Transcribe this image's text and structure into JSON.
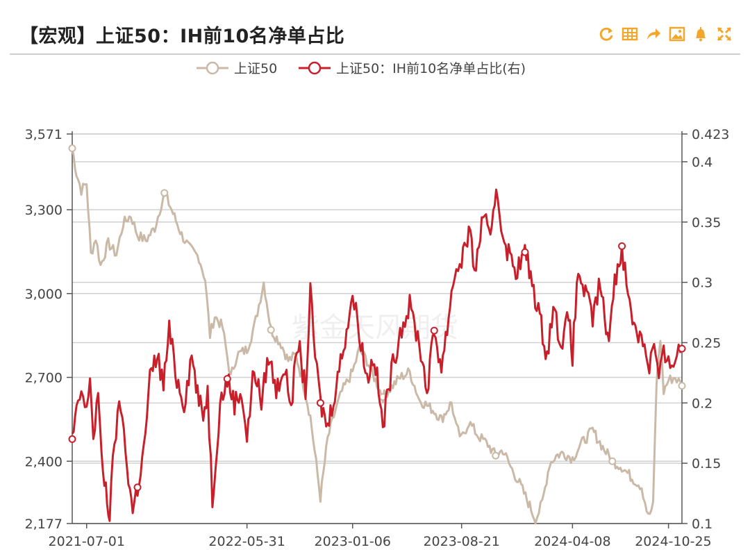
{
  "header": {
    "title": "【宏观】上证50：IH前10名净单占比",
    "tools": [
      {
        "icon": "refresh-icon"
      },
      {
        "icon": "table-icon"
      },
      {
        "icon": "share-icon"
      },
      {
        "icon": "image-download-icon"
      },
      {
        "icon": "bell-icon"
      },
      {
        "icon": "fullscreen-icon"
      }
    ],
    "accent_color": "#f4a62a"
  },
  "watermark": "紫金天风期货",
  "chart_data": {
    "type": "line",
    "x_tick_labels": [
      "2021-07-01",
      "2022-05-31",
      "2023-01-06",
      "2023-08-21",
      "2024-04-08",
      "2024-10-25"
    ],
    "x_range": [
      "2021-06-01",
      "2024-11-22"
    ],
    "y_left": {
      "ticks": [
        "3,571",
        "3,300",
        "3,000",
        "2,700",
        "2,400",
        "2,177"
      ],
      "range": [
        2177,
        3571
      ]
    },
    "y_right": {
      "ticks": [
        "0.423",
        "0.4",
        "0.35",
        "0.3",
        "0.25",
        "0.2",
        "0.15",
        "0.1"
      ],
      "range": [
        0.1,
        0.423
      ]
    },
    "grid": true,
    "legend_position": "top-center",
    "series": [
      {
        "name": "上证50",
        "axis": "left",
        "color": "#c9b9a6",
        "points": [
          [
            "2021-06-01",
            3520
          ],
          [
            "2021-06-10",
            3430
          ],
          [
            "2021-06-20",
            3370
          ],
          [
            "2021-07-01",
            3395
          ],
          [
            "2021-07-10",
            3140
          ],
          [
            "2021-07-20",
            3200
          ],
          [
            "2021-07-30",
            3100
          ],
          [
            "2021-08-15",
            3180
          ],
          [
            "2021-09-01",
            3140
          ],
          [
            "2021-09-15",
            3250
          ],
          [
            "2021-10-01",
            3280
          ],
          [
            "2021-10-15",
            3210
          ],
          [
            "2021-11-01",
            3190
          ],
          [
            "2021-11-20",
            3235
          ],
          [
            "2021-12-10",
            3360
          ],
          [
            "2021-12-25",
            3300
          ],
          [
            "2022-01-15",
            3210
          ],
          [
            "2022-02-01",
            3160
          ],
          [
            "2022-02-20",
            3130
          ],
          [
            "2022-03-05",
            3050
          ],
          [
            "2022-03-15",
            2850
          ],
          [
            "2022-03-25",
            2920
          ],
          [
            "2022-04-10",
            2880
          ],
          [
            "2022-04-27",
            2700
          ],
          [
            "2022-05-10",
            2780
          ],
          [
            "2022-05-31",
            2800
          ],
          [
            "2022-06-15",
            2880
          ],
          [
            "2022-07-05",
            3040
          ],
          [
            "2022-07-20",
            2870
          ],
          [
            "2022-08-10",
            2820
          ],
          [
            "2022-08-25",
            2760
          ],
          [
            "2022-09-10",
            2780
          ],
          [
            "2022-09-25",
            2680
          ],
          [
            "2022-10-10",
            2560
          ],
          [
            "2022-10-31",
            2270
          ],
          [
            "2022-11-15",
            2480
          ],
          [
            "2022-12-01",
            2580
          ],
          [
            "2022-12-15",
            2650
          ],
          [
            "2023-01-06",
            2720
          ],
          [
            "2023-01-20",
            2800
          ],
          [
            "2023-02-05",
            2760
          ],
          [
            "2023-02-20",
            2700
          ],
          [
            "2023-03-10",
            2630
          ],
          [
            "2023-03-25",
            2660
          ],
          [
            "2023-04-15",
            2700
          ],
          [
            "2023-05-05",
            2720
          ],
          [
            "2023-05-25",
            2620
          ],
          [
            "2023-06-10",
            2600
          ],
          [
            "2023-06-25",
            2580
          ],
          [
            "2023-07-10",
            2550
          ],
          [
            "2023-07-31",
            2610
          ],
          [
            "2023-08-10",
            2520
          ],
          [
            "2023-08-21",
            2480
          ],
          [
            "2023-09-05",
            2540
          ],
          [
            "2023-09-25",
            2490
          ],
          [
            "2023-10-15",
            2460
          ],
          [
            "2023-10-31",
            2420
          ],
          [
            "2023-11-15",
            2440
          ],
          [
            "2023-12-01",
            2380
          ],
          [
            "2023-12-20",
            2320
          ],
          [
            "2024-01-10",
            2240
          ],
          [
            "2024-01-22",
            2190
          ],
          [
            "2024-02-05",
            2250
          ],
          [
            "2024-02-20",
            2390
          ],
          [
            "2024-03-05",
            2420
          ],
          [
            "2024-03-20",
            2430
          ],
          [
            "2024-04-08",
            2410
          ],
          [
            "2024-04-25",
            2460
          ],
          [
            "2024-05-20",
            2510
          ],
          [
            "2024-06-10",
            2450
          ],
          [
            "2024-06-30",
            2400
          ],
          [
            "2024-07-20",
            2380
          ],
          [
            "2024-08-10",
            2340
          ],
          [
            "2024-08-30",
            2310
          ],
          [
            "2024-09-13",
            2200
          ],
          [
            "2024-09-23",
            2240
          ],
          [
            "2024-09-30",
            2680
          ],
          [
            "2024-10-08",
            2840
          ],
          [
            "2024-10-15",
            2650
          ],
          [
            "2024-10-25",
            2690
          ],
          [
            "2024-11-08",
            2700
          ],
          [
            "2024-11-22",
            2670
          ]
        ]
      },
      {
        "name": "上证50：IH前10名净单占比(右)",
        "axis": "right",
        "color": "#c8202b",
        "points": [
          [
            "2021-06-01",
            0.17
          ],
          [
            "2021-06-10",
            0.19
          ],
          [
            "2021-06-20",
            0.21
          ],
          [
            "2021-07-01",
            0.19
          ],
          [
            "2021-07-08",
            0.225
          ],
          [
            "2021-07-15",
            0.17
          ],
          [
            "2021-07-25",
            0.21
          ],
          [
            "2021-08-01",
            0.15
          ],
          [
            "2021-08-10",
            0.13
          ],
          [
            "2021-08-18",
            0.105
          ],
          [
            "2021-08-28",
            0.17
          ],
          [
            "2021-09-10",
            0.2
          ],
          [
            "2021-09-20",
            0.16
          ],
          [
            "2021-10-05",
            0.11
          ],
          [
            "2021-10-15",
            0.13
          ],
          [
            "2021-10-28",
            0.16
          ],
          [
            "2021-11-10",
            0.22
          ],
          [
            "2021-11-25",
            0.24
          ],
          [
            "2021-12-08",
            0.215
          ],
          [
            "2021-12-20",
            0.26
          ],
          [
            "2022-01-05",
            0.22
          ],
          [
            "2022-01-20",
            0.2
          ],
          [
            "2022-02-05",
            0.24
          ],
          [
            "2022-02-20",
            0.2
          ],
          [
            "2022-03-01",
            0.19
          ],
          [
            "2022-03-10",
            0.21
          ],
          [
            "2022-03-20",
            0.12
          ],
          [
            "2022-04-05",
            0.2
          ],
          [
            "2022-04-20",
            0.22
          ],
          [
            "2022-05-05",
            0.2
          ],
          [
            "2022-05-20",
            0.21
          ],
          [
            "2022-05-31",
            0.17
          ],
          [
            "2022-06-15",
            0.23
          ],
          [
            "2022-06-30",
            0.2
          ],
          [
            "2022-07-15",
            0.24
          ],
          [
            "2022-07-31",
            0.21
          ],
          [
            "2022-08-15",
            0.23
          ],
          [
            "2022-08-31",
            0.2
          ],
          [
            "2022-09-15",
            0.25
          ],
          [
            "2022-09-30",
            0.21
          ],
          [
            "2022-10-10",
            0.29
          ],
          [
            "2022-10-20",
            0.24
          ],
          [
            "2022-10-31",
            0.2
          ],
          [
            "2022-11-15",
            0.18
          ],
          [
            "2022-11-30",
            0.21
          ],
          [
            "2022-12-15",
            0.24
          ],
          [
            "2023-01-06",
            0.29
          ],
          [
            "2023-01-20",
            0.26
          ],
          [
            "2023-02-05",
            0.22
          ],
          [
            "2023-02-20",
            0.24
          ],
          [
            "2023-03-10",
            0.18
          ],
          [
            "2023-03-25",
            0.22
          ],
          [
            "2023-04-15",
            0.26
          ],
          [
            "2023-05-05",
            0.28
          ],
          [
            "2023-05-25",
            0.25
          ],
          [
            "2023-06-10",
            0.21
          ],
          [
            "2023-06-25",
            0.26
          ],
          [
            "2023-07-10",
            0.23
          ],
          [
            "2023-07-25",
            0.27
          ],
          [
            "2023-07-31",
            0.295
          ],
          [
            "2023-08-10",
            0.31
          ],
          [
            "2023-08-21",
            0.32
          ],
          [
            "2023-09-05",
            0.34
          ],
          [
            "2023-09-20",
            0.31
          ],
          [
            "2023-10-05",
            0.36
          ],
          [
            "2023-10-20",
            0.33
          ],
          [
            "2023-11-01",
            0.38
          ],
          [
            "2023-11-15",
            0.34
          ],
          [
            "2023-11-30",
            0.32
          ],
          [
            "2023-12-15",
            0.31
          ],
          [
            "2023-12-31",
            0.325
          ],
          [
            "2024-01-15",
            0.3
          ],
          [
            "2024-01-31",
            0.27
          ],
          [
            "2024-02-15",
            0.24
          ],
          [
            "2024-02-28",
            0.28
          ],
          [
            "2024-03-15",
            0.25
          ],
          [
            "2024-03-31",
            0.27
          ],
          [
            "2024-04-08",
            0.24
          ],
          [
            "2024-04-20",
            0.31
          ],
          [
            "2024-05-05",
            0.29
          ],
          [
            "2024-05-20",
            0.27
          ],
          [
            "2024-06-05",
            0.3
          ],
          [
            "2024-06-20",
            0.25
          ],
          [
            "2024-07-05",
            0.3
          ],
          [
            "2024-07-20",
            0.33
          ],
          [
            "2024-08-05",
            0.28
          ],
          [
            "2024-08-20",
            0.26
          ],
          [
            "2024-09-05",
            0.25
          ],
          [
            "2024-09-15",
            0.23
          ],
          [
            "2024-09-25",
            0.25
          ],
          [
            "2024-10-05",
            0.22
          ],
          [
            "2024-10-15",
            0.24
          ],
          [
            "2024-10-25",
            0.23
          ],
          [
            "2024-11-08",
            0.24
          ],
          [
            "2024-11-22",
            0.245
          ]
        ]
      }
    ],
    "markers_every_n": 14
  }
}
